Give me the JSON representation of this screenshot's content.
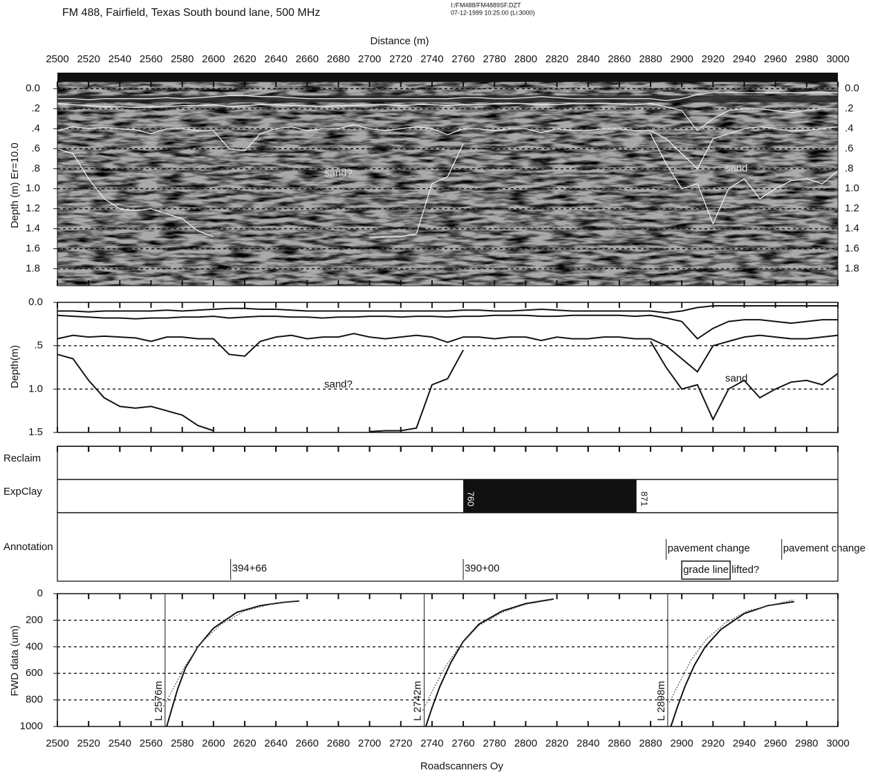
{
  "chart_data": [
    {
      "type": "radargram",
      "title": "FM 488, Fairfield, Texas  South bound lane, 500 MHz",
      "file_info": [
        "I:/FM488/FM4889SF.DZT",
        "07-12-1999  10:25:00  (Li:3000)"
      ],
      "xlabel": "Distance (m)",
      "ylabel": "Depth (m) Er=10.0",
      "xlim": [
        2500,
        3000
      ],
      "xticks": [
        2500,
        2520,
        2540,
        2560,
        2580,
        2600,
        2620,
        2640,
        2660,
        2680,
        2700,
        2720,
        2740,
        2760,
        2780,
        2800,
        2820,
        2840,
        2860,
        2880,
        2900,
        2920,
        2940,
        2960,
        2980,
        3000
      ],
      "ylim": [
        -0.07,
        1.97
      ],
      "yticks": [
        {
          "value": 0,
          "label": "0.0"
        },
        {
          "value": 0.2,
          "label": ".2"
        },
        {
          "value": 0.4,
          "label": ".4"
        },
        {
          "value": 0.6,
          "label": ".6"
        },
        {
          "value": 0.8,
          "label": ".8"
        },
        {
          "value": 1,
          "label": "1.0"
        },
        1.2,
        1.4,
        1.6,
        1.8
      ],
      "grid": true,
      "annotations": [
        {
          "text": "sand?",
          "x": 2680,
          "y": 0.85
        },
        {
          "text": "sand",
          "x": 2935,
          "y": 0.8
        }
      ]
    },
    {
      "type": "line",
      "ylabel": "Depth(m)",
      "xlim": [
        2500,
        3000
      ],
      "ylim": [
        0,
        1.5
      ],
      "yticks": [
        {
          "value": 0,
          "label": "0.0"
        },
        {
          "value": 0.5,
          "label": ".5"
        },
        {
          "value": 1,
          "label": "1.0"
        },
        1.5
      ],
      "grid": true,
      "x": [
        2500,
        2510,
        2520,
        2530,
        2540,
        2550,
        2560,
        2570,
        2580,
        2590,
        2600,
        2610,
        2620,
        2630,
        2640,
        2650,
        2660,
        2670,
        2680,
        2690,
        2700,
        2710,
        2720,
        2730,
        2740,
        2750,
        2760,
        2770,
        2780,
        2790,
        2800,
        2810,
        2820,
        2830,
        2840,
        2850,
        2860,
        2870,
        2880,
        2890,
        2900,
        2910,
        2920,
        2930,
        2940,
        2950,
        2960,
        2970,
        2980,
        2990,
        3000
      ],
      "series": [
        {
          "color": "#111",
          "values": [
            0.1,
            0.1,
            0.11,
            0.1,
            0.1,
            0.1,
            0.1,
            0.09,
            0.1,
            0.09,
            0.08,
            0.07,
            0.07,
            0.08,
            0.08,
            0.09,
            0.1,
            0.1,
            0.1,
            0.1,
            0.1,
            0.1,
            0.1,
            0.1,
            0.1,
            0.1,
            0.09,
            0.09,
            0.1,
            0.1,
            0.09,
            0.08,
            0.09,
            0.1,
            0.1,
            0.1,
            0.1,
            0.1,
            0.1,
            0.12,
            0.1,
            0.06,
            0.04,
            0.04,
            0.04,
            0.04,
            0.04,
            0.04,
            0.04,
            0.04,
            0.04
          ]
        },
        {
          "color": "#111",
          "values": [
            0.15,
            0.16,
            0.17,
            0.18,
            0.18,
            0.19,
            0.18,
            0.18,
            0.17,
            0.17,
            0.16,
            0.18,
            0.17,
            0.16,
            0.16,
            0.17,
            0.17,
            0.18,
            0.17,
            0.17,
            0.16,
            0.16,
            0.17,
            0.16,
            0.16,
            0.17,
            0.16,
            0.16,
            0.15,
            0.15,
            0.15,
            0.16,
            0.16,
            0.15,
            0.15,
            0.15,
            0.15,
            0.16,
            0.15,
            0.18,
            0.22,
            0.42,
            0.3,
            0.22,
            0.2,
            0.2,
            0.22,
            0.24,
            0.22,
            0.2,
            0.2
          ]
        },
        {
          "color": "#111",
          "values": [
            0.42,
            0.38,
            0.4,
            0.39,
            0.4,
            0.41,
            0.45,
            0.4,
            0.4,
            0.42,
            0.42,
            0.6,
            0.62,
            0.45,
            0.4,
            0.38,
            0.42,
            0.4,
            0.4,
            0.36,
            0.4,
            0.42,
            0.4,
            0.38,
            0.4,
            0.46,
            0.4,
            0.4,
            0.42,
            0.4,
            0.4,
            0.44,
            0.4,
            0.42,
            0.42,
            0.4,
            0.4,
            0.42,
            0.42,
            0.5,
            0.65,
            0.8,
            0.5,
            0.45,
            0.4,
            0.38,
            0.4,
            0.42,
            0.42,
            0.4,
            0.38
          ]
        },
        {
          "color": "#111",
          "values": [
            0.6,
            0.65,
            0.9,
            1.1,
            1.2,
            1.22,
            1.2,
            1.25,
            1.3,
            1.42,
            1.48,
            null,
            null,
            null,
            null,
            null,
            null,
            null,
            null,
            null,
            1.49,
            1.48,
            1.48,
            1.45,
            0.95,
            0.88,
            0.55,
            null,
            null,
            null,
            null,
            null,
            null,
            null,
            null,
            null,
            null,
            null,
            0.45,
            0.75,
            1.0,
            0.95,
            1.35,
            1.0,
            0.9,
            1.1,
            1.0,
            0.92,
            0.9,
            0.95,
            0.82
          ]
        }
      ],
      "annotations": [
        {
          "text": "sand?",
          "x": 2680,
          "y": 0.95
        },
        {
          "text": "sand",
          "x": 2935,
          "y": 0.88
        }
      ]
    },
    {
      "type": "tracks",
      "xlim": [
        2500,
        3000
      ],
      "rows": [
        {
          "label": "Reclaim",
          "segments": []
        },
        {
          "label": "ExpClay",
          "segments": [
            {
              "start": 2760,
              "end": 2871,
              "start_label": "760",
              "end_label": "871"
            }
          ]
        },
        {
          "label": "Annotation",
          "items": [
            {
              "x": 2611,
              "text": "394+66"
            },
            {
              "x": 2760,
              "text": "390+00"
            },
            {
              "x": 2890,
              "text": "pavement change"
            },
            {
              "x": 2964,
              "text": "pavement change"
            },
            {
              "x": 2900,
              "text": "grade line lifted?"
            }
          ]
        }
      ]
    },
    {
      "type": "line",
      "xlabel": "Roadscanners Oy",
      "ylabel": "FWD data (um)",
      "xlim": [
        2500,
        3000
      ],
      "xticks": [
        2500,
        2520,
        2540,
        2560,
        2580,
        2600,
        2620,
        2640,
        2660,
        2680,
        2700,
        2720,
        2740,
        2760,
        2780,
        2800,
        2820,
        2840,
        2860,
        2880,
        2900,
        2920,
        2940,
        2960,
        2980,
        3000
      ],
      "ylim": [
        0,
        1000
      ],
      "yticks": [
        0,
        200,
        400,
        600,
        800,
        1000
      ],
      "grid": true,
      "series": [
        {
          "color": "#111",
          "x": [
            2570,
            2573,
            2577,
            2582,
            2590,
            2600,
            2615,
            2630,
            2645,
            2655
          ],
          "values": [
            1000,
            880,
            720,
            560,
            400,
            260,
            140,
            90,
            65,
            55
          ]
        },
        {
          "color": "#555",
          "dash": true,
          "x": [
            2568,
            2574,
            2582,
            2592,
            2605,
            2620,
            2640,
            2655
          ],
          "values": [
            850,
            720,
            540,
            370,
            230,
            130,
            70,
            55
          ]
        },
        {
          "color": "#111",
          "x": [
            2736,
            2740,
            2745,
            2752,
            2760,
            2770,
            2785,
            2800,
            2818
          ],
          "values": [
            1000,
            860,
            700,
            520,
            360,
            230,
            130,
            75,
            40
          ]
        },
        {
          "color": "#555",
          "dash": true,
          "x": [
            2734,
            2740,
            2748,
            2758,
            2770,
            2785,
            2800,
            2818
          ],
          "values": [
            880,
            740,
            560,
            390,
            240,
            140,
            80,
            45
          ]
        },
        {
          "color": "#111",
          "x": [
            2893,
            2897,
            2902,
            2908,
            2915,
            2925,
            2940,
            2955,
            2972
          ],
          "values": [
            1000,
            860,
            700,
            540,
            400,
            270,
            150,
            90,
            60
          ]
        },
        {
          "color": "#555",
          "dash": true,
          "x": [
            2892,
            2898,
            2906,
            2916,
            2928,
            2942,
            2958,
            2972
          ],
          "values": [
            820,
            680,
            500,
            340,
            220,
            130,
            85,
            45
          ]
        }
      ],
      "annotations": [
        {
          "text": "L 2576m",
          "x": 2569
        },
        {
          "text": "L 2742m",
          "x": 2735
        },
        {
          "text": "L 2898m",
          "x": 2891
        }
      ]
    }
  ]
}
